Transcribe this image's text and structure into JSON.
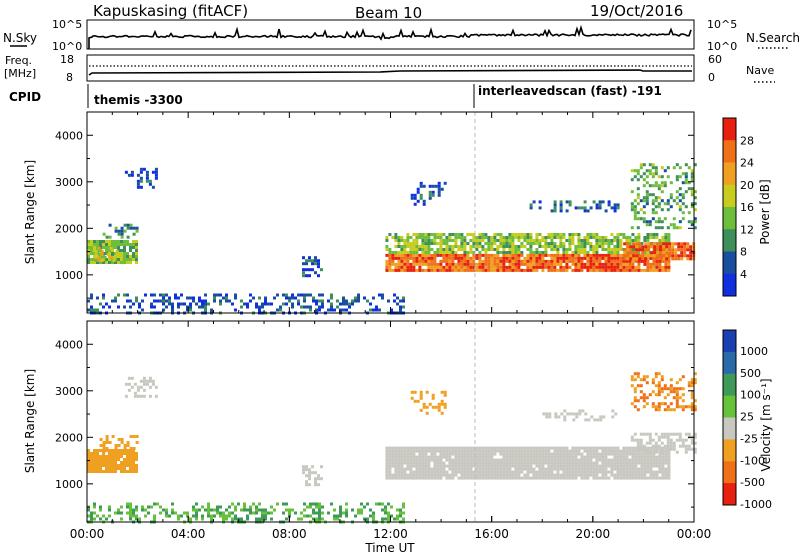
{
  "header": {
    "station": "Kapuskasing (fitACF)",
    "beam": "Beam 10",
    "date": "19/Oct/2016"
  },
  "top_panels": {
    "nsky_label": "N.Sky",
    "nsearch_label": "N.Search",
    "nsky_ticks": [
      "10^5",
      "10^0"
    ],
    "nsearch_ticks": [
      "10^5",
      "10^0"
    ],
    "freq_label": "Freq.",
    "freq_unit": "[MHz]",
    "freq_ticks": [
      "18",
      "8"
    ],
    "nave_label": "Nave",
    "nave_ticks": [
      "60",
      "0"
    ],
    "cpid_label": "CPID",
    "cpid_entries": [
      {
        "label": "themis -3300",
        "start_hour": 0
      },
      {
        "label": "interleavedscan (fast) -191",
        "start_hour": 15.3
      }
    ]
  },
  "chart_data": [
    {
      "type": "heatmap",
      "id": "power",
      "x_unit": "hours UT",
      "xlim": [
        0,
        24
      ],
      "ylabel": "Slant Range [km]",
      "ylim": [
        180,
        4500
      ],
      "yticks": [
        "1000",
        "2000",
        "3000",
        "4000"
      ],
      "colorbar_label": "Power [dB]",
      "colorbar_ticks": [
        "4",
        "8",
        "12",
        "16",
        "20",
        "24",
        "28"
      ],
      "colorbar_colors": [
        "#1030e0",
        "#1a4fa0",
        "#3f8f5a",
        "#6cbe3c",
        "#c8cc1e",
        "#f0a020",
        "#f07018",
        "#e82010"
      ],
      "vmin": 0,
      "vmax": 32,
      "regions": [
        {
          "t0": 0.0,
          "t1": 2.0,
          "r0": 1250,
          "r1": 1750,
          "value": 14,
          "density": 0.9
        },
        {
          "t0": 0.3,
          "t1": 1.2,
          "r0": 1300,
          "r1": 1600,
          "value": 20,
          "density": 0.5
        },
        {
          "t0": 0.5,
          "t1": 2.0,
          "r0": 1800,
          "r1": 2100,
          "value": 10,
          "density": 0.3
        },
        {
          "t0": 1.5,
          "t1": 2.8,
          "r0": 2900,
          "r1": 3300,
          "value": 4,
          "density": 0.35
        },
        {
          "t0": 0.0,
          "t1": 12.5,
          "r0": 200,
          "r1": 600,
          "value": 5,
          "density": 0.35
        },
        {
          "t0": 8.5,
          "t1": 9.3,
          "r0": 1000,
          "r1": 1400,
          "value": 5,
          "density": 0.4
        },
        {
          "t0": 11.8,
          "t1": 23.0,
          "r0": 1100,
          "r1": 1450,
          "value": 26,
          "density": 0.92
        },
        {
          "t0": 11.8,
          "t1": 23.0,
          "r0": 1450,
          "r1": 1900,
          "value": 15,
          "density": 0.75
        },
        {
          "t0": 12.8,
          "t1": 14.2,
          "r0": 2500,
          "r1": 3000,
          "value": 6,
          "density": 0.3
        },
        {
          "t0": 17.5,
          "t1": 21.0,
          "r0": 2400,
          "r1": 2600,
          "value": 7,
          "density": 0.3
        },
        {
          "t0": 21.5,
          "t1": 24.0,
          "r0": 2000,
          "r1": 3400,
          "value": 12,
          "density": 0.35
        },
        {
          "t0": 21.2,
          "t1": 24.0,
          "r0": 1350,
          "r1": 1700,
          "value": 27,
          "density": 0.9
        }
      ]
    },
    {
      "type": "heatmap",
      "id": "velocity",
      "x_unit": "hours UT",
      "xlim": [
        0,
        24
      ],
      "xlabel": "Time UT",
      "xticks": [
        "00:00",
        "04:00",
        "08:00",
        "12:00",
        "16:00",
        "20:00",
        "00:00"
      ],
      "ylabel": "Slant Range [km]",
      "ylim": [
        180,
        4500
      ],
      "yticks": [
        "1000",
        "2000",
        "3000",
        "4000"
      ],
      "colorbar_label": "Velocity [m s⁻¹]",
      "colorbar_ticks": [
        "1000",
        "500",
        "100",
        "25",
        "-25",
        "-100",
        "-500",
        "-1000"
      ],
      "colorbar_colors": [
        "#1a3fb0",
        "#2a6aa8",
        "#3e9a58",
        "#66c23a",
        "#c8c8c0",
        "#f0a020",
        "#f07018",
        "#e82010"
      ],
      "regions": [
        {
          "t0": 0.0,
          "t1": 2.0,
          "r0": 1250,
          "r1": 1750,
          "value": -100,
          "density": 0.92
        },
        {
          "t0": 0.5,
          "t1": 2.0,
          "r0": 1700,
          "r1": 2050,
          "value": -100,
          "density": 0.35
        },
        {
          "t0": 1.5,
          "t1": 2.8,
          "r0": 2900,
          "r1": 3300,
          "value": 0,
          "density": 0.35
        },
        {
          "t0": 0.0,
          "t1": 12.5,
          "r0": 200,
          "r1": 600,
          "value": 60,
          "density": 0.35
        },
        {
          "t0": 8.5,
          "t1": 9.3,
          "r0": 1000,
          "r1": 1400,
          "value": 0,
          "density": 0.3
        },
        {
          "t0": 11.8,
          "t1": 23.0,
          "r0": 1150,
          "r1": 1800,
          "value": 0,
          "density": 0.95
        },
        {
          "t0": 12.8,
          "t1": 14.2,
          "r0": 2500,
          "r1": 3000,
          "value": -100,
          "density": 0.3
        },
        {
          "t0": 18.0,
          "t1": 21.0,
          "r0": 2400,
          "r1": 2600,
          "value": 0,
          "density": 0.3
        },
        {
          "t0": 21.5,
          "t1": 24.0,
          "r0": 2600,
          "r1": 3400,
          "value": -300,
          "density": 0.4
        },
        {
          "t0": 21.5,
          "t1": 24.0,
          "r0": 1700,
          "r1": 2100,
          "value": 0,
          "density": 0.6
        }
      ]
    }
  ]
}
